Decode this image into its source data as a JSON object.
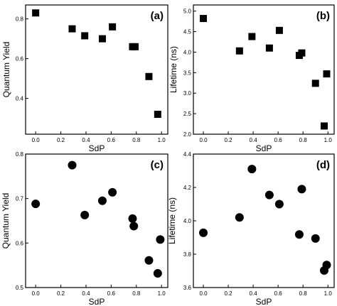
{
  "chart_data": [
    {
      "type": "scatter",
      "panel_label": "(a)",
      "xlabel": "SdP",
      "ylabel": "Quantum Yield",
      "xlim": [
        -0.08,
        1.05
      ],
      "ylim": [
        0.22,
        0.87
      ],
      "xticks": [
        "0.0",
        "0.2",
        "0.4",
        "0.6",
        "0.8",
        "1.0"
      ],
      "yticks": [
        "0.4",
        "0.6",
        "0.8"
      ],
      "marker": "square",
      "x": [
        0.0,
        0.29,
        0.39,
        0.53,
        0.61,
        0.77,
        0.79,
        0.9,
        0.97
      ],
      "y": [
        0.83,
        0.75,
        0.715,
        0.7,
        0.76,
        0.66,
        0.66,
        0.51,
        0.32
      ]
    },
    {
      "type": "scatter",
      "panel_label": "(b)",
      "xlabel": "SdP",
      "ylabel": "Lifetime (ns)",
      "xlim": [
        -0.08,
        1.05
      ],
      "ylim": [
        2.0,
        5.15
      ],
      "xticks": [
        "0.0",
        "0.2",
        "0.4",
        "0.6",
        "0.8",
        "1.0"
      ],
      "yticks": [
        "2.0",
        "2.5",
        "3.0",
        "3.5",
        "4.0",
        "4.5",
        "5.0"
      ],
      "marker": "square",
      "x": [
        0.0,
        0.29,
        0.39,
        0.53,
        0.61,
        0.77,
        0.79,
        0.9,
        0.97,
        0.99
      ],
      "y": [
        4.82,
        4.03,
        4.38,
        4.1,
        4.53,
        3.92,
        3.98,
        3.24,
        2.2,
        3.47
      ]
    },
    {
      "type": "scatter",
      "panel_label": "(c)",
      "xlabel": "SdP",
      "ylabel": "Quantum Yield",
      "xlim": [
        -0.08,
        1.05
      ],
      "ylim": [
        0.5,
        0.8
      ],
      "xticks": [
        "0.0",
        "0.2",
        "0.4",
        "0.6",
        "0.8",
        "1.0"
      ],
      "yticks": [
        "0.5",
        "0.6",
        "0.7",
        "0.8"
      ],
      "marker": "circle",
      "x": [
        0.0,
        0.29,
        0.39,
        0.53,
        0.61,
        0.77,
        0.78,
        0.9,
        0.97,
        0.99
      ],
      "y": [
        0.688,
        0.775,
        0.663,
        0.695,
        0.714,
        0.655,
        0.638,
        0.561,
        0.532,
        0.608
      ]
    },
    {
      "type": "scatter",
      "panel_label": "(d)",
      "xlabel": "SdP",
      "ylabel": "Lifetime (ns)",
      "xlim": [
        -0.08,
        1.05
      ],
      "ylim": [
        3.6,
        4.4
      ],
      "xticks": [
        "0.0",
        "0.2",
        "0.4",
        "0.6",
        "0.8",
        "1.0"
      ],
      "yticks": [
        "3.6",
        "3.8",
        "4.0",
        "4.2",
        "4.4"
      ],
      "marker": "circle",
      "x": [
        0.0,
        0.29,
        0.39,
        0.53,
        0.61,
        0.77,
        0.79,
        0.9,
        0.97,
        0.99
      ],
      "y": [
        3.928,
        4.02,
        4.31,
        4.155,
        4.1,
        3.918,
        4.19,
        3.894,
        3.702,
        3.735
      ]
    }
  ]
}
